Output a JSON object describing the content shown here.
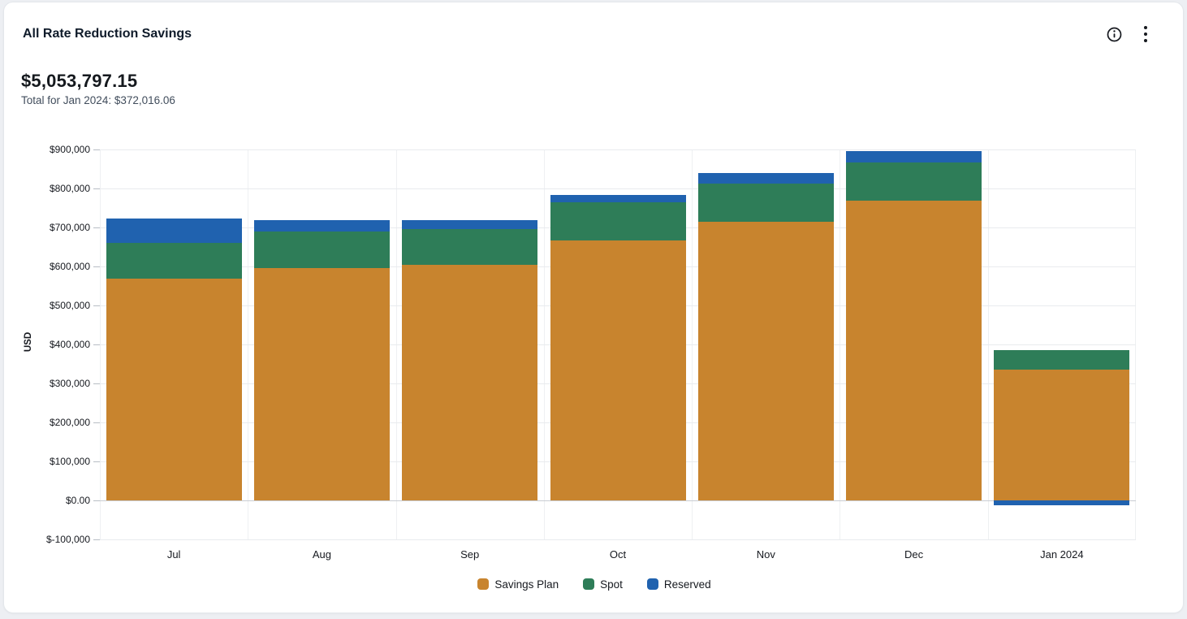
{
  "header": {
    "title": "All Rate Reduction Savings",
    "total": "$5,053,797.15",
    "subtitle": "Total for Jan 2024: $372,016.06"
  },
  "chart_data": {
    "type": "bar",
    "stacked": true,
    "title": "All Rate Reduction Savings",
    "ylabel": "USD",
    "ylim": [
      -100000,
      900000
    ],
    "ytick_step": 100000,
    "ytick_labels": [
      "$900,000",
      "$800,000",
      "$700,000",
      "$600,000",
      "$500,000",
      "$400,000",
      "$300,000",
      "$200,000",
      "$100,000",
      "$0.00",
      "$-100,000"
    ],
    "grid": true,
    "legend_position": "bottom",
    "categories": [
      "Jul",
      "Aug",
      "Sep",
      "Oct",
      "Nov",
      "Dec",
      "Jan 2024"
    ],
    "series": [
      {
        "name": "Savings Plan",
        "color": "#c8842e",
        "values": [
          569000,
          596000,
          604000,
          666000,
          715000,
          769000,
          335000
        ]
      },
      {
        "name": "Spot",
        "color": "#2e7d58",
        "values": [
          91000,
          93000,
          91000,
          98000,
          97000,
          97000,
          50000
        ]
      },
      {
        "name": "Reserved",
        "color": "#2062af",
        "values": [
          63000,
          30000,
          23000,
          20000,
          28000,
          30000,
          -13000
        ]
      }
    ]
  }
}
